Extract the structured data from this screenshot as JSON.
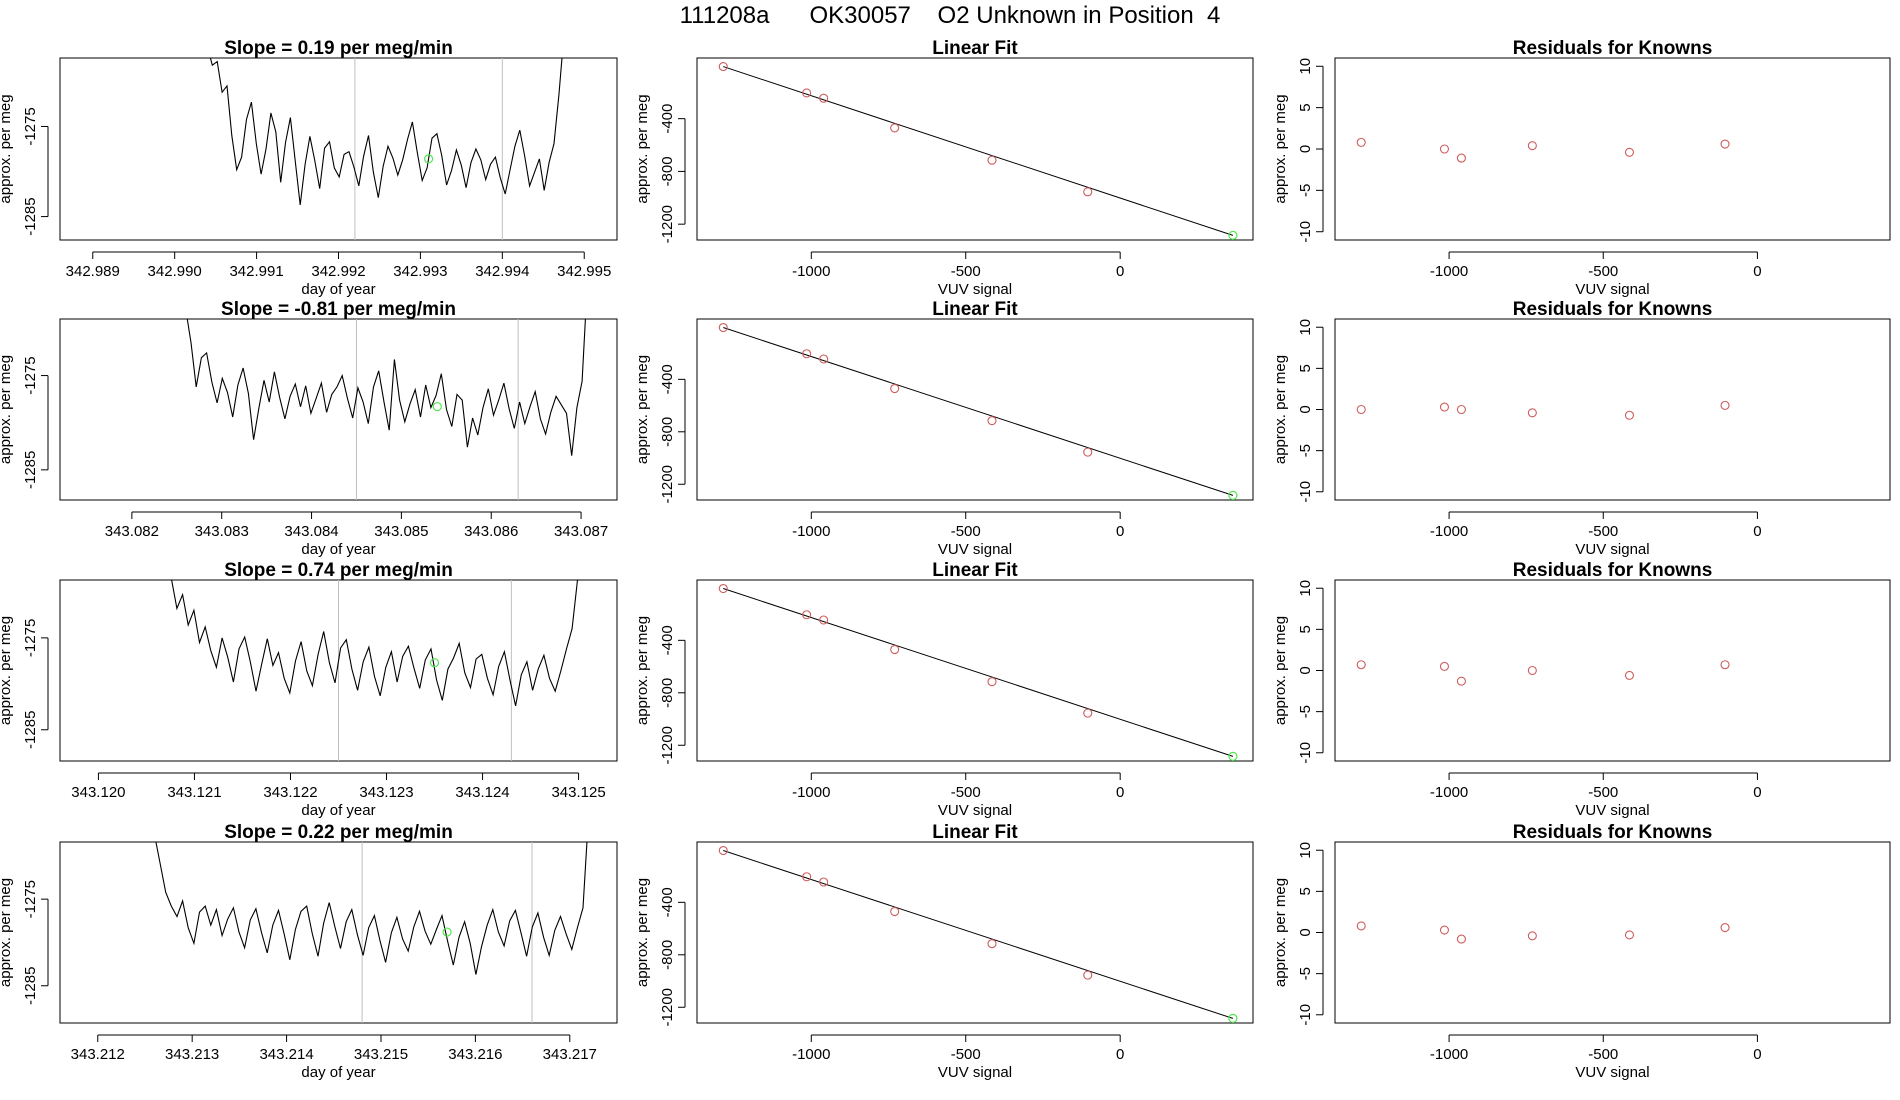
{
  "main_title": "111208a      OK30057    O2 Unknown in Position  4",
  "colors": {
    "fit_points": "#cd5c5c",
    "unknown_point": "#4ee84e",
    "trace": "#000000",
    "window_line": "#c0c0c0"
  },
  "chart_data": [
    {
      "type": "line",
      "title": "Slope =  0.19  per meg/min",
      "xlabel": "day of year",
      "ylabel": "approx. per meg",
      "xlim": [
        342.9886,
        342.9954
      ],
      "ylim": [
        -1287.6,
        -1267.4
      ],
      "xticks": [
        "342.989",
        "342.990",
        "342.991",
        "342.992",
        "342.993",
        "342.994",
        "342.995"
      ],
      "yticks": [
        "-1275",
        "-1285"
      ],
      "window_lines": [
        342.9922,
        342.994
      ],
      "unknown_point": [
        342.9931,
        -1278.6
      ],
      "series": [
        {
          "name": "signal",
          "x_start": 342.9904,
          "x_end": 342.99475,
          "y": [
            -1266.1,
            -1268.2,
            -1267.8,
            -1271.2,
            -1270.5,
            -1276.0,
            -1279.8,
            -1278.4,
            -1274.2,
            -1272.3,
            -1276.9,
            -1280.3,
            -1277.5,
            -1273.5,
            -1275.6,
            -1281.2,
            -1276.8,
            -1274.0,
            -1278.9,
            -1283.7,
            -1279.2,
            -1276.1,
            -1278.8,
            -1281.9,
            -1277.4,
            -1276.7,
            -1279.6,
            -1280.6,
            -1278.1,
            -1277.8,
            -1279.5,
            -1281.6,
            -1278.3,
            -1276.0,
            -1280.1,
            -1282.9,
            -1279.4,
            -1277.2,
            -1278.5,
            -1280.4,
            -1278.7,
            -1276.4,
            -1274.5,
            -1277.9,
            -1281.0,
            -1279.6,
            -1276.3,
            -1275.8,
            -1278.2,
            -1281.5,
            -1279.9,
            -1277.6,
            -1279.3,
            -1281.8,
            -1279.0,
            -1277.5,
            -1278.7,
            -1280.9,
            -1279.2,
            -1278.4,
            -1280.7,
            -1282.5,
            -1279.8,
            -1277.2,
            -1275.4,
            -1278.3,
            -1281.6,
            -1280.1,
            -1278.6,
            -1282.1,
            -1279.0,
            -1276.9,
            -1271.5,
            -1265.0
          ]
        }
      ]
    },
    {
      "type": "scatter",
      "title": "Linear Fit",
      "xlabel": "VUV signal",
      "ylabel": "approx. per meg",
      "xlim": [
        -1370,
        430
      ],
      "ylim": [
        -1320,
        60
      ],
      "xticks": [
        "-1000",
        "-500",
        "0"
      ],
      "yticks": [
        "-400",
        "-800",
        "-1200"
      ],
      "fit_line": {
        "x1": -1285,
        "y1": -5,
        "x2": 365,
        "y2": -1285
      },
      "points": {
        "x": [
          -1285,
          -1015,
          -960,
          -730,
          -415,
          -105
        ],
        "y": [
          -5,
          -205,
          -245,
          -470,
          -715,
          -955
        ]
      },
      "unknown_point": [
        365,
        -1285
      ]
    },
    {
      "type": "scatter",
      "title": "Residuals for Knowns",
      "xlabel": "VUV signal",
      "ylabel": "approx. per meg",
      "xlim": [
        -1370,
        430
      ],
      "ylim": [
        -11,
        11
      ],
      "xticks": [
        "-1000",
        "-500",
        "0"
      ],
      "yticks": [
        "10",
        "5",
        "0",
        "-5",
        "-10"
      ],
      "points": {
        "x": [
          -1285,
          -1015,
          -960,
          -730,
          -415,
          -105
        ],
        "y": [
          0.8,
          0.0,
          -1.1,
          0.4,
          -0.4,
          0.6
        ]
      }
    },
    {
      "type": "line",
      "title": "Slope =  -0.81  per meg/min",
      "xlabel": "day of year",
      "ylabel": "approx. per meg",
      "xlim": [
        343.0812,
        343.0874
      ],
      "ylim": [
        -1288.2,
        -1269.0
      ],
      "xticks": [
        "343.082",
        "343.083",
        "343.084",
        "343.085",
        "343.086",
        "343.087"
      ],
      "yticks": [
        "-1275",
        "-1285"
      ],
      "window_lines": [
        343.0845,
        343.0863
      ],
      "unknown_point": [
        343.0854,
        -1278.3
      ],
      "series": [
        {
          "name": "signal",
          "x_start": 343.0826,
          "x_end": 343.08707,
          "y": [
            -1268.0,
            -1271.5,
            -1276.2,
            -1273.1,
            -1272.6,
            -1275.7,
            -1277.9,
            -1275.3,
            -1276.8,
            -1279.4,
            -1276.0,
            -1274.2,
            -1276.9,
            -1281.8,
            -1278.5,
            -1275.5,
            -1277.8,
            -1274.6,
            -1277.3,
            -1279.6,
            -1277.2,
            -1275.9,
            -1278.3,
            -1276.1,
            -1279.0,
            -1277.4,
            -1275.8,
            -1278.9,
            -1277.0,
            -1276.2,
            -1275.0,
            -1277.4,
            -1279.5,
            -1276.3,
            -1277.8,
            -1280.1,
            -1276.2,
            -1274.5,
            -1277.8,
            -1280.8,
            -1273.3,
            -1277.6,
            -1279.9,
            -1278.0,
            -1276.5,
            -1279.4,
            -1276.0,
            -1278.4,
            -1277.1,
            -1274.8,
            -1278.6,
            -1280.4,
            -1277.0,
            -1277.6,
            -1282.6,
            -1279.5,
            -1281.3,
            -1278.4,
            -1276.4,
            -1279.2,
            -1277.6,
            -1275.8,
            -1278.5,
            -1280.6,
            -1277.8,
            -1280.1,
            -1278.3,
            -1276.7,
            -1279.6,
            -1281.2,
            -1278.9,
            -1277.2,
            -1278.1,
            -1279.0,
            -1283.5,
            -1278.4,
            -1275.6,
            -1265.0
          ]
        }
      ]
    },
    {
      "type": "scatter",
      "title": "Linear Fit",
      "xlabel": "VUV signal",
      "ylabel": "approx. per meg",
      "xlim": [
        -1370,
        430
      ],
      "ylim": [
        -1320,
        60
      ],
      "xticks": [
        "-1000",
        "-500",
        "0"
      ],
      "yticks": [
        "-400",
        "-800",
        "-1200"
      ],
      "fit_line": {
        "x1": -1285,
        "y1": -5,
        "x2": 365,
        "y2": -1285
      },
      "points": {
        "x": [
          -1285,
          -1015,
          -960,
          -730,
          -415,
          -105
        ],
        "y": [
          -5,
          -205,
          -245,
          -470,
          -715,
          -955
        ]
      },
      "unknown_point": [
        365,
        -1285
      ]
    },
    {
      "type": "scatter",
      "title": "Residuals for Knowns",
      "xlabel": "VUV signal",
      "ylabel": "approx. per meg",
      "xlim": [
        -1370,
        430
      ],
      "ylim": [
        -11,
        11
      ],
      "xticks": [
        "-1000",
        "-500",
        "0"
      ],
      "yticks": [
        "10",
        "5",
        "0",
        "-5",
        "-10"
      ],
      "points": {
        "x": [
          -1285,
          -1015,
          -960,
          -730,
          -415,
          -105
        ],
        "y": [
          0.0,
          0.3,
          0.0,
          -0.4,
          -0.7,
          0.5
        ]
      }
    },
    {
      "type": "line",
      "title": "Slope =  0.74  per meg/min",
      "xlabel": "day of year",
      "ylabel": "approx. per meg",
      "xlim": [
        343.1196,
        343.1254
      ],
      "ylim": [
        -1288.4,
        -1268.7
      ],
      "xticks": [
        "343.120",
        "343.121",
        "343.122",
        "343.123",
        "343.124",
        "343.125"
      ],
      "yticks": [
        "-1275",
        "-1285"
      ],
      "window_lines": [
        343.1225,
        343.1243
      ],
      "unknown_point": [
        343.1235,
        -1277.7
      ],
      "series": [
        {
          "name": "signal",
          "x_start": 343.1207,
          "x_end": 343.12505,
          "y": [
            -1267.2,
            -1268.5,
            -1271.8,
            -1270.3,
            -1273.6,
            -1272.0,
            -1275.5,
            -1273.8,
            -1276.4,
            -1278.2,
            -1275.0,
            -1277.1,
            -1279.8,
            -1276.2,
            -1274.9,
            -1277.6,
            -1280.8,
            -1277.9,
            -1275.1,
            -1278.0,
            -1276.6,
            -1279.4,
            -1281.0,
            -1277.5,
            -1275.4,
            -1278.6,
            -1280.2,
            -1276.8,
            -1274.3,
            -1277.7,
            -1279.9,
            -1276.1,
            -1275.2,
            -1278.4,
            -1280.7,
            -1277.6,
            -1276.0,
            -1279.2,
            -1281.3,
            -1278.2,
            -1276.5,
            -1279.8,
            -1277.0,
            -1275.9,
            -1278.3,
            -1280.5,
            -1277.4,
            -1276.2,
            -1279.6,
            -1281.8,
            -1278.4,
            -1277.2,
            -1275.6,
            -1278.8,
            -1280.4,
            -1277.3,
            -1276.8,
            -1279.4,
            -1281.2,
            -1278.1,
            -1276.5,
            -1279.6,
            -1282.4,
            -1279.0,
            -1277.6,
            -1280.7,
            -1278.4,
            -1276.9,
            -1279.4,
            -1280.8,
            -1278.6,
            -1276.2,
            -1274.0,
            -1268.5,
            -1265.0
          ]
        }
      ]
    },
    {
      "type": "scatter",
      "title": "Linear Fit",
      "xlabel": "VUV signal",
      "ylabel": "approx. per meg",
      "xlim": [
        -1370,
        430
      ],
      "ylim": [
        -1320,
        60
      ],
      "xticks": [
        "-1000",
        "-500",
        "0"
      ],
      "yticks": [
        "-400",
        "-800",
        "-1200"
      ],
      "fit_line": {
        "x1": -1285,
        "y1": -5,
        "x2": 365,
        "y2": -1285
      },
      "points": {
        "x": [
          -1285,
          -1015,
          -960,
          -730,
          -415,
          -105
        ],
        "y": [
          -5,
          -205,
          -245,
          -470,
          -715,
          -955
        ]
      },
      "unknown_point": [
        365,
        -1285
      ]
    },
    {
      "type": "scatter",
      "title": "Residuals for Knowns",
      "xlabel": "VUV signal",
      "ylabel": "approx. per meg",
      "xlim": [
        -1370,
        430
      ],
      "ylim": [
        -11,
        11
      ],
      "xticks": [
        "-1000",
        "-500",
        "0"
      ],
      "yticks": [
        "10",
        "5",
        "0",
        "-5",
        "-10"
      ],
      "points": {
        "x": [
          -1285,
          -1015,
          -960,
          -730,
          -415,
          -105
        ],
        "y": [
          0.7,
          0.5,
          -1.3,
          0.0,
          -0.6,
          0.7
        ]
      }
    },
    {
      "type": "line",
      "title": "Slope =  0.22  per meg/min",
      "xlabel": "day of year",
      "ylabel": "approx. per meg",
      "xlim": [
        343.2116,
        343.2175
      ],
      "ylim": [
        -1289.3,
        -1268.4
      ],
      "xticks": [
        "343.212",
        "343.213",
        "343.214",
        "343.215",
        "343.216",
        "343.217"
      ],
      "yticks": [
        "-1275",
        "-1285"
      ],
      "window_lines": [
        343.2148,
        343.2166
      ],
      "unknown_point": [
        343.2157,
        -1278.8
      ],
      "series": [
        {
          "name": "signal",
          "x_start": 343.2126,
          "x_end": 343.2172,
          "y": [
            -1267.5,
            -1270.8,
            -1274.2,
            -1275.8,
            -1277.0,
            -1275.2,
            -1278.3,
            -1280.1,
            -1276.5,
            -1275.8,
            -1278.0,
            -1276.2,
            -1279.2,
            -1277.3,
            -1276.0,
            -1278.8,
            -1280.6,
            -1277.4,
            -1276.1,
            -1278.9,
            -1281.2,
            -1278.0,
            -1276.3,
            -1279.0,
            -1282.0,
            -1278.5,
            -1276.4,
            -1275.8,
            -1279.0,
            -1281.6,
            -1277.8,
            -1275.4,
            -1278.2,
            -1280.7,
            -1277.6,
            -1276.2,
            -1279.1,
            -1281.5,
            -1278.3,
            -1276.9,
            -1279.8,
            -1282.3,
            -1278.9,
            -1277.1,
            -1279.6,
            -1281.0,
            -1278.2,
            -1276.4,
            -1278.7,
            -1280.2,
            -1278.5,
            -1276.9,
            -1279.9,
            -1282.6,
            -1279.4,
            -1277.6,
            -1280.1,
            -1283.7,
            -1280.5,
            -1278.0,
            -1276.2,
            -1278.8,
            -1280.4,
            -1277.5,
            -1276.3,
            -1278.9,
            -1281.6,
            -1278.2,
            -1276.6,
            -1279.4,
            -1281.5,
            -1278.6,
            -1277.0,
            -1279.0,
            -1280.8,
            -1278.3,
            -1276.0,
            -1265.0
          ]
        }
      ]
    },
    {
      "type": "scatter",
      "title": "Linear Fit",
      "xlabel": "VUV signal",
      "ylabel": "approx. per meg",
      "xlim": [
        -1370,
        430
      ],
      "ylim": [
        -1320,
        60
      ],
      "xticks": [
        "-1000",
        "-500",
        "0"
      ],
      "yticks": [
        "-400",
        "-800",
        "-1200"
      ],
      "fit_line": {
        "x1": -1285,
        "y1": -5,
        "x2": 365,
        "y2": -1285
      },
      "points": {
        "x": [
          -1285,
          -1015,
          -960,
          -730,
          -415,
          -105
        ],
        "y": [
          -5,
          -205,
          -245,
          -470,
          -715,
          -955
        ]
      },
      "unknown_point": [
        365,
        -1285
      ]
    },
    {
      "type": "scatter",
      "title": "Residuals for Knowns",
      "xlabel": "VUV signal",
      "ylabel": "approx. per meg",
      "xlim": [
        -1370,
        430
      ],
      "ylim": [
        -11,
        11
      ],
      "xticks": [
        "-1000",
        "-500",
        "0"
      ],
      "yticks": [
        "10",
        "5",
        "0",
        "-5",
        "-10"
      ],
      "points": {
        "x": [
          -1285,
          -1015,
          -960,
          -730,
          -415,
          -105
        ],
        "y": [
          0.8,
          0.3,
          -0.8,
          -0.4,
          -0.3,
          0.6
        ]
      }
    }
  ]
}
